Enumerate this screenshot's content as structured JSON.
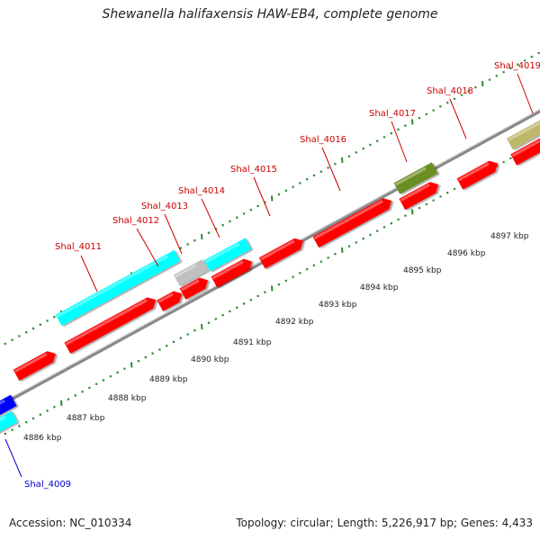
{
  "title": "Shewanella halifaxensis HAW-EB4, complete genome",
  "footer": {
    "accession": "Accession: NC_010334",
    "summary": "Topology: circular; Length: 5,226,917 bp; Genes: 4,433"
  },
  "colors": {
    "forward_gene": "#ff0000",
    "cds_cyan": "#00ffff",
    "cds_grey": "#c0c0c0",
    "cds_olive": "#6b8e23",
    "cds_khaki": "#bdb76b",
    "cds_blue": "#0000ff",
    "backbone": "#888888",
    "tick": "#2e8b2e",
    "label_red": "#cc0000",
    "label_blue": "#0000cc"
  },
  "scale_labels": [
    "4886 kbp",
    "4887 kbp",
    "4888 kbp",
    "4889 kbp",
    "4890 kbp",
    "4891 kbp",
    "4892 kbp",
    "4893 kbp",
    "4894 kbp",
    "4895 kbp",
    "4896 kbp",
    "4897 kbp"
  ],
  "gene_labels": [
    {
      "text": "Shal_4009",
      "color": "label_blue"
    },
    {
      "text": "Shal_4011",
      "color": "label_red"
    },
    {
      "text": "Shal_4012",
      "color": "label_red"
    },
    {
      "text": "Shal_4013",
      "color": "label_red"
    },
    {
      "text": "Shal_4014",
      "color": "label_red"
    },
    {
      "text": "Shal_4015",
      "color": "label_red"
    },
    {
      "text": "Shal_4016",
      "color": "label_red"
    },
    {
      "text": "Shal_4017",
      "color": "label_red"
    },
    {
      "text": "Shal_4018",
      "color": "label_red"
    },
    {
      "text": "Shal_4019",
      "color": "label_red"
    }
  ],
  "features": [
    {
      "name": "gene-blue-edge",
      "color": "cds_blue"
    },
    {
      "name": "gene-cyan-edge",
      "color": "cds_cyan"
    },
    {
      "name": "gene-red-a",
      "color": "forward_gene"
    },
    {
      "name": "gene-red-b",
      "color": "forward_gene"
    },
    {
      "name": "gene-red-c",
      "color": "forward_gene"
    },
    {
      "name": "gene-red-d",
      "color": "forward_gene"
    },
    {
      "name": "gene-red-e",
      "color": "forward_gene"
    },
    {
      "name": "gene-red-f",
      "color": "forward_gene"
    },
    {
      "name": "gene-red-g",
      "color": "forward_gene"
    },
    {
      "name": "gene-red-h",
      "color": "forward_gene"
    },
    {
      "name": "gene-red-i",
      "color": "forward_gene"
    },
    {
      "name": "gene-red-j",
      "color": "forward_gene"
    },
    {
      "name": "cds-cyan-4011",
      "color": "cds_cyan"
    },
    {
      "name": "cds-grey-4013",
      "color": "cds_grey"
    },
    {
      "name": "cds-cyan-4014",
      "color": "cds_cyan"
    },
    {
      "name": "cds-olive-4017",
      "color": "cds_olive"
    },
    {
      "name": "cds-khaki-4019",
      "color": "cds_khaki"
    }
  ]
}
